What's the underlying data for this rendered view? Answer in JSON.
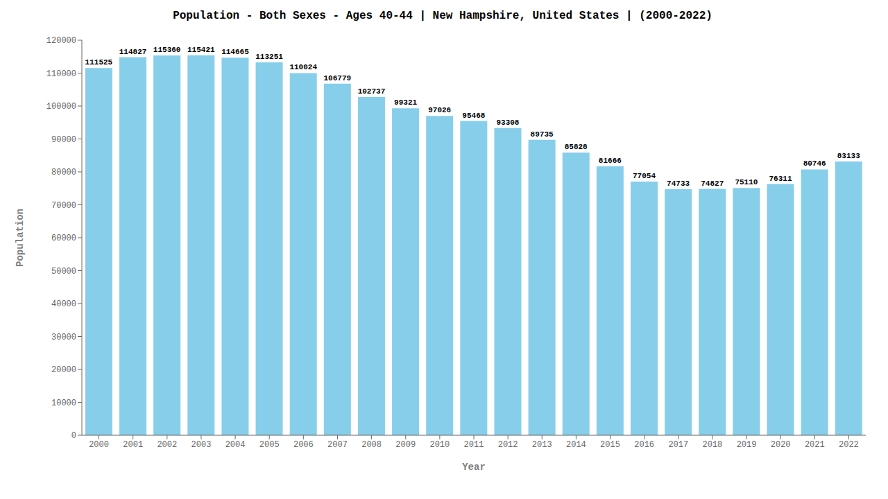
{
  "chart_data": {
    "type": "bar",
    "title": "Population - Both Sexes - Ages 40-44 | New Hampshire, United States |  (2000-2022)",
    "xlabel": "Year",
    "ylabel": "Population",
    "categories": [
      "2000",
      "2001",
      "2002",
      "2003",
      "2004",
      "2005",
      "2006",
      "2007",
      "2008",
      "2009",
      "2010",
      "2011",
      "2012",
      "2013",
      "2014",
      "2015",
      "2016",
      "2017",
      "2018",
      "2019",
      "2020",
      "2021",
      "2022"
    ],
    "values": [
      111525,
      114827,
      115360,
      115421,
      114665,
      113251,
      110024,
      106779,
      102737,
      99321,
      97026,
      95468,
      93308,
      89735,
      85828,
      81666,
      77054,
      74733,
      74827,
      75110,
      76311,
      80746,
      83133
    ],
    "color": "#87CEEB",
    "ylim": [
      0,
      120000
    ],
    "yticks": [
      0,
      10000,
      20000,
      30000,
      40000,
      50000,
      60000,
      70000,
      80000,
      90000,
      100000,
      110000,
      120000
    ],
    "grid": false,
    "data_labels": true
  }
}
